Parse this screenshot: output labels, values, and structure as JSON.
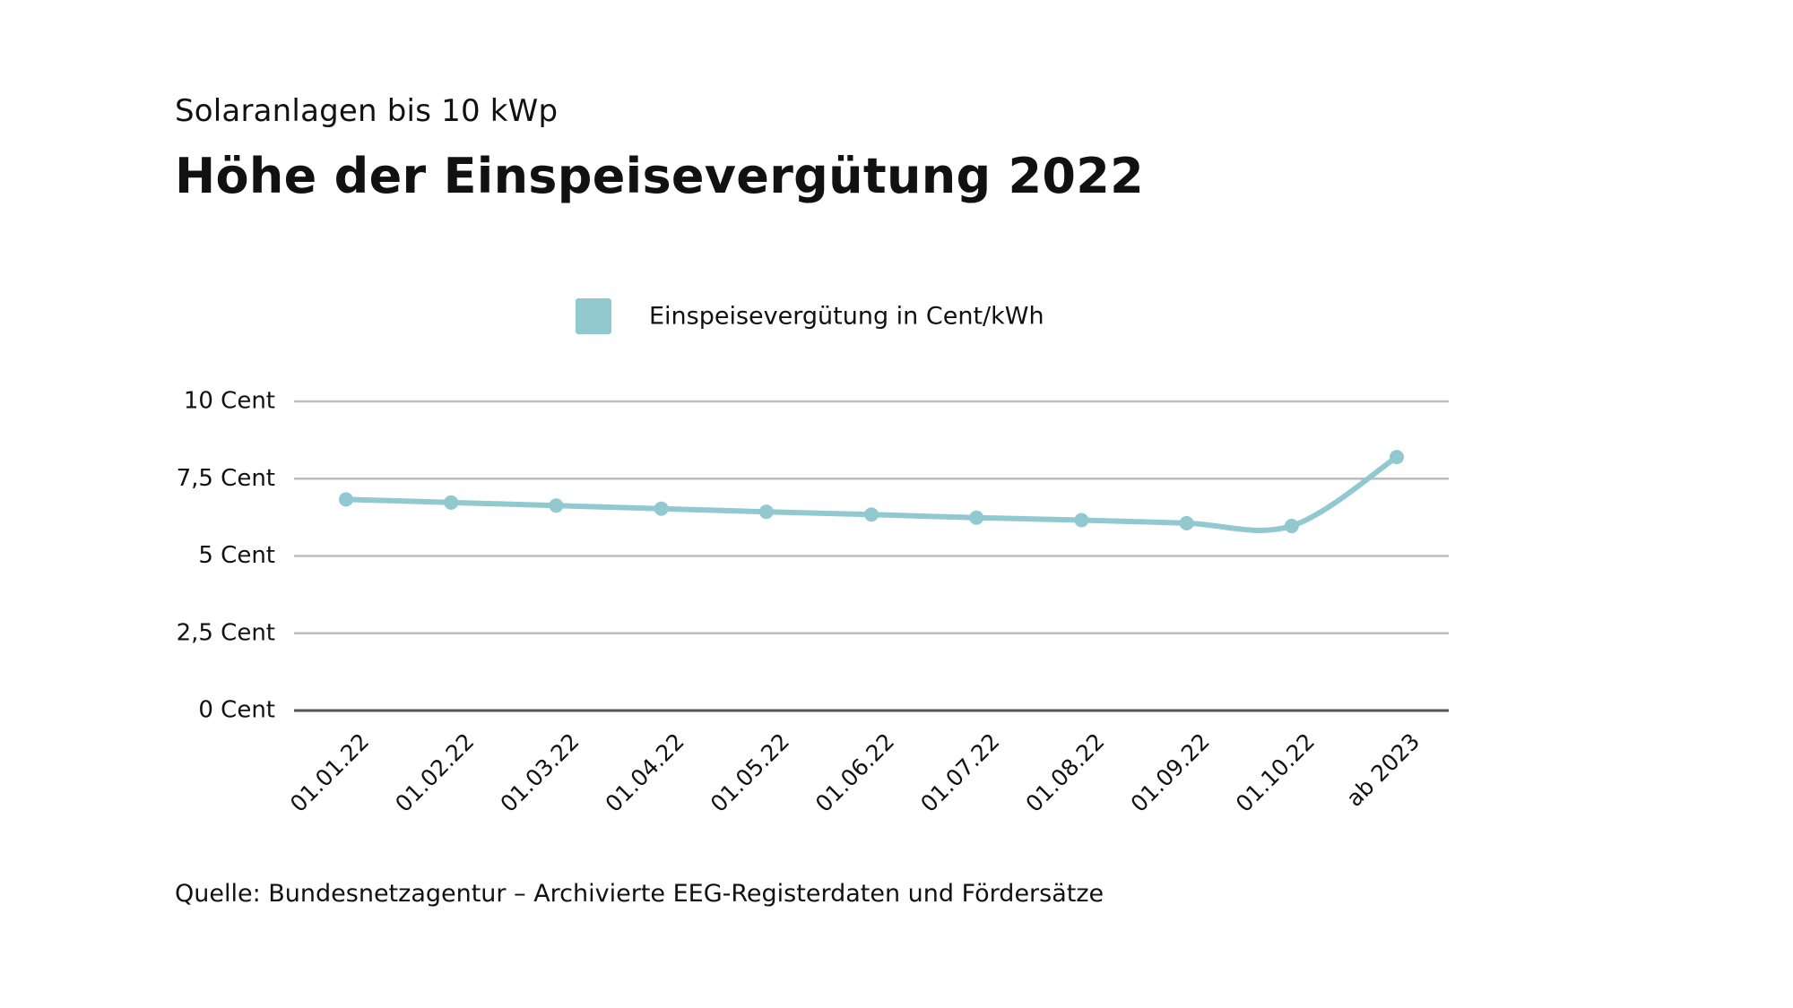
{
  "header": {
    "subtitle": "Solaranlagen bis 10 kWp",
    "title": "Höhe der Einspeisevergütung 2022"
  },
  "footer": {
    "source": "Quelle: Bundesnetzagentur – Archivierte EEG-Registerdaten und Fördersätze"
  },
  "colors": {
    "series": "#92c8d0",
    "grid": "#bdbdbd",
    "baseline": "#555555"
  },
  "chart_data": {
    "type": "line",
    "title": "Höhe der Einspeisevergütung 2022",
    "subtitle": "Solaranlagen bis 10 kWp",
    "categories": [
      "01.01.22",
      "01.02.22",
      "01.03.22",
      "01.04.22",
      "01.05.22",
      "01.06.22",
      "01.07.22",
      "01.08.22",
      "01.09.22",
      "01.10.22",
      "ab 2023"
    ],
    "series": [
      {
        "name": "Einspeisevergütung in Cent/kWh",
        "values": [
          6.83,
          6.73,
          6.63,
          6.53,
          6.43,
          6.34,
          6.24,
          6.16,
          6.06,
          5.97,
          8.2
        ]
      }
    ],
    "ylim": [
      0,
      10
    ],
    "y_ticks": [
      0,
      2.5,
      5,
      7.5,
      10
    ],
    "y_tick_labels": [
      "0 Cent",
      "2,5 Cent",
      "5 Cent",
      "7,5 Cent",
      "10 Cent"
    ],
    "grid": true,
    "legend_position": "top-center"
  }
}
